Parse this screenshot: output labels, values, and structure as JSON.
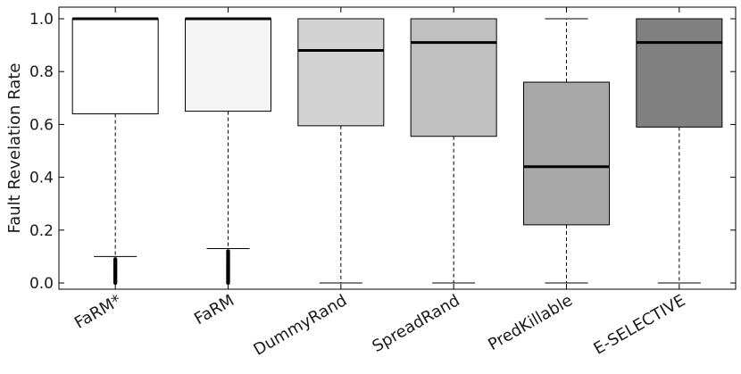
{
  "chart_data": {
    "type": "boxplot",
    "title": "",
    "xlabel": "",
    "ylabel": "Fault Revelation Rate",
    "ylim": [
      0.0,
      1.0
    ],
    "yticks": [
      "0.0",
      "0.2",
      "0.4",
      "0.6",
      "0.8",
      "1.0"
    ],
    "ytick_values": [
      0.0,
      0.2,
      0.4,
      0.6,
      0.8,
      1.0
    ],
    "categories": [
      "FaRM*",
      "FaRM",
      "DummyRand",
      "SpreadRand",
      "PredKillable",
      "E-SELECTIVE"
    ],
    "boxes": [
      {
        "name": "FaRM*",
        "whisker_low": 0.1,
        "q1": 0.64,
        "median": 1.0,
        "q3": 1.0,
        "whisker_high": 1.0,
        "fill": "#ffffff",
        "outliers": [
          0.0,
          0.005,
          0.01,
          0.015,
          0.02,
          0.025,
          0.03,
          0.035,
          0.04,
          0.045,
          0.05,
          0.055,
          0.06,
          0.065,
          0.07,
          0.075,
          0.08,
          0.085,
          0.09
        ]
      },
      {
        "name": "FaRM",
        "whisker_low": 0.13,
        "q1": 0.65,
        "median": 1.0,
        "q3": 1.0,
        "whisker_high": 1.0,
        "fill": "#f5f5f5",
        "outliers": [
          0.0,
          0.005,
          0.01,
          0.015,
          0.02,
          0.025,
          0.03,
          0.035,
          0.04,
          0.045,
          0.05,
          0.055,
          0.06,
          0.065,
          0.07,
          0.075,
          0.08,
          0.085,
          0.09,
          0.095,
          0.1,
          0.105,
          0.11,
          0.115,
          0.12
        ]
      },
      {
        "name": "DummyRand",
        "whisker_low": 0.0,
        "q1": 0.595,
        "median": 0.88,
        "q3": 1.0,
        "whisker_high": 1.0,
        "fill": "#d3d3d3",
        "outliers": []
      },
      {
        "name": "SpreadRand",
        "whisker_low": 0.0,
        "q1": 0.555,
        "median": 0.91,
        "q3": 1.0,
        "whisker_high": 1.0,
        "fill": "#c0c0c0",
        "outliers": []
      },
      {
        "name": "PredKillable",
        "whisker_low": 0.0,
        "q1": 0.22,
        "median": 0.44,
        "q3": 0.76,
        "whisker_high": 1.0,
        "fill": "#a8a8a8",
        "outliers": []
      },
      {
        "name": "E-SELECTIVE",
        "whisker_low": 0.0,
        "q1": 0.59,
        "median": 0.91,
        "q3": 1.0,
        "whisker_high": 1.0,
        "fill": "#808080",
        "outliers": []
      }
    ]
  }
}
